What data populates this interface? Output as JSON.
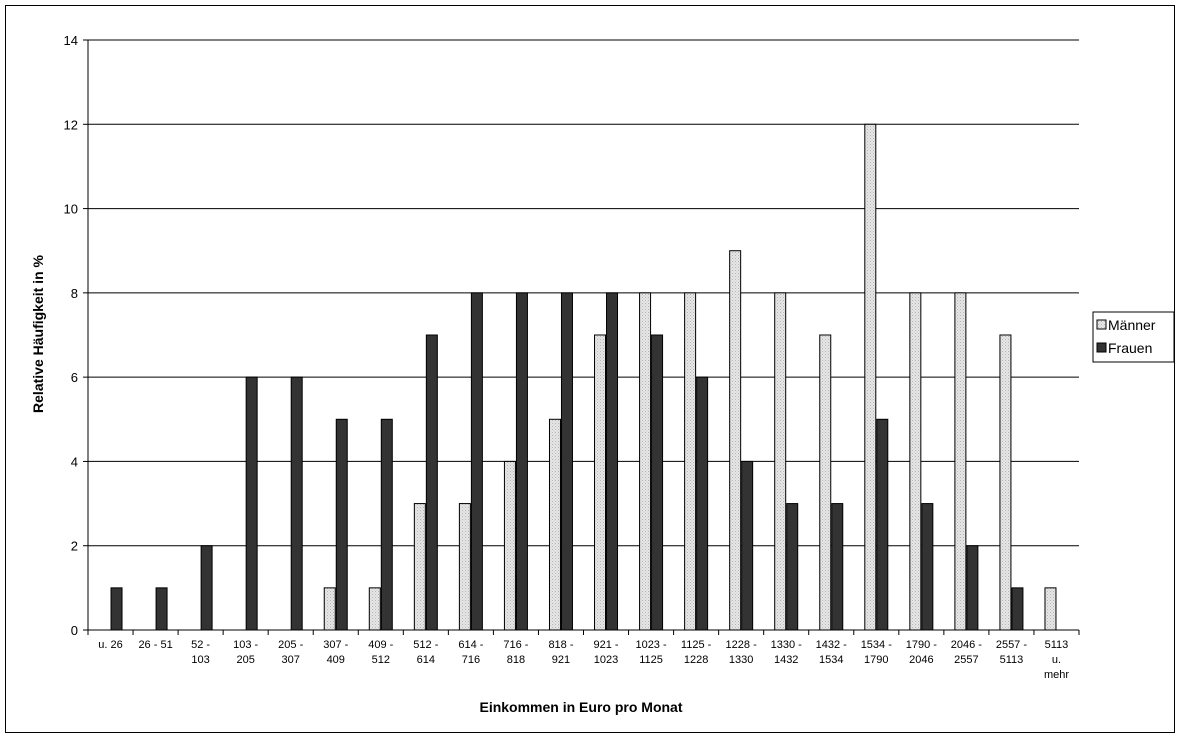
{
  "chart_data": {
    "type": "bar",
    "title": "",
    "xlabel": "Einkommen in Euro pro Monat",
    "ylabel": "Relative Häufigkeit in %",
    "ylim": [
      0,
      14
    ],
    "y_ticks": [
      0,
      2,
      4,
      6,
      8,
      10,
      12,
      14
    ],
    "grid": true,
    "legend_position": "right",
    "categories": [
      "u. 26",
      "26 - 51",
      "52 - 103",
      "103 - 205",
      "205 - 307",
      "307 - 409",
      "409 - 512",
      "512 - 614",
      "614 - 716",
      "716 - 818",
      "818 - 921",
      "921 - 1023",
      "1023 - 1125",
      "1125 - 1228",
      "1228 - 1330",
      "1330 - 1432",
      "1432 - 1534",
      "1534 - 1790",
      "1790 - 2046",
      "2046 - 2557",
      "2557 - 5113",
      "5113 u. mehr"
    ],
    "category_label_lines": [
      [
        "u. 26"
      ],
      [
        "26 - 51"
      ],
      [
        "52 -",
        "103"
      ],
      [
        "103 -",
        "205"
      ],
      [
        "205 -",
        "307"
      ],
      [
        "307 -",
        "409"
      ],
      [
        "409 -",
        "512"
      ],
      [
        "512 -",
        "614"
      ],
      [
        "614 -",
        "716"
      ],
      [
        "716 -",
        "818"
      ],
      [
        "818 -",
        "921"
      ],
      [
        "921 -",
        "1023"
      ],
      [
        "1023 -",
        "1125"
      ],
      [
        "1125 -",
        "1228"
      ],
      [
        "1228 -",
        "1330"
      ],
      [
        "1330 -",
        "1432"
      ],
      [
        "1432 -",
        "1534"
      ],
      [
        "1534 -",
        "1790"
      ],
      [
        "1790 -",
        "2046"
      ],
      [
        "2046 -",
        "2557"
      ],
      [
        "2557 -",
        "5113"
      ],
      [
        "5113",
        "u.",
        "mehr"
      ]
    ],
    "series": [
      {
        "name": "Männer",
        "color": "#d9d9d9",
        "values": [
          null,
          null,
          null,
          null,
          null,
          1,
          1,
          3,
          3,
          4,
          5,
          7,
          8,
          8,
          9,
          8,
          7,
          12,
          8,
          8,
          7,
          1
        ]
      },
      {
        "name": "Frauen",
        "color": "#333333",
        "values": [
          1,
          1,
          2,
          6,
          6,
          5,
          5,
          7,
          8,
          8,
          8,
          8,
          7,
          6,
          4,
          3,
          3,
          5,
          3,
          2,
          1,
          null
        ]
      }
    ]
  }
}
